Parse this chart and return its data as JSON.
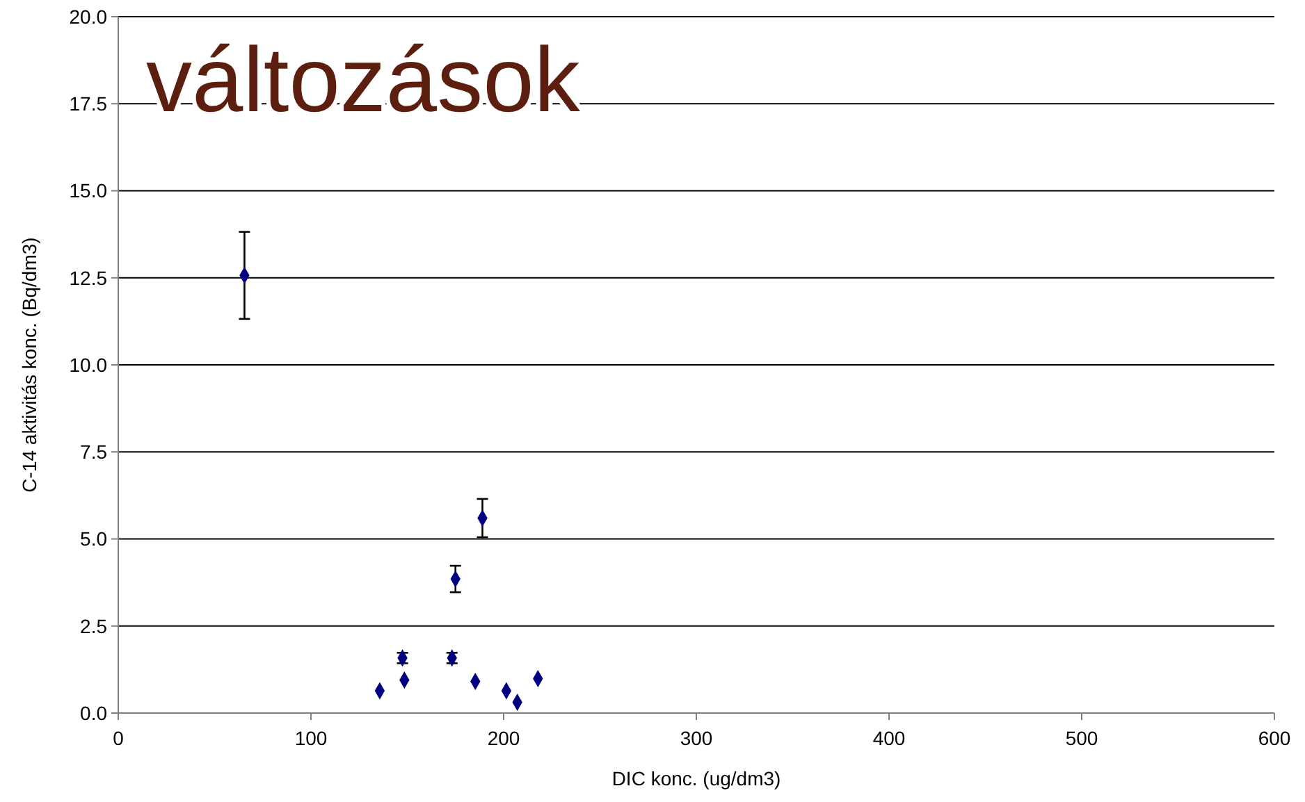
{
  "chart_data": {
    "type": "scatter",
    "title": "változások",
    "xlabel": "DIC konc. (ug/dm3)",
    "ylabel": "C-14 aktivitás konc.  (Bq/dm3)",
    "x": [
      65.5,
      175,
      189,
      135.7,
      147.5,
      148.5,
      173.2,
      185.3,
      201.4,
      207.1,
      217.8
    ],
    "values": [
      12.57,
      3.85,
      5.6,
      0.64,
      1.58,
      0.95,
      1.58,
      0.91,
      0.64,
      0.31,
      0.99
    ],
    "errors": [
      1.25,
      0.38,
      0.55,
      null,
      0.15,
      null,
      0.15,
      null,
      null,
      null,
      null
    ],
    "color": "#000080",
    "marker": "diamond",
    "grid": "y",
    "xlim": [
      0,
      600
    ],
    "xticks": [
      0,
      100,
      200,
      300,
      400,
      500,
      600
    ],
    "ylim": [
      0,
      20
    ],
    "yticks": [
      {
        "value": 0,
        "label": "0.0"
      },
      {
        "value": 2.5,
        "label": "2.5"
      },
      {
        "value": 5,
        "label": "5.0"
      },
      {
        "value": 7.5,
        "label": "7.5"
      },
      {
        "value": 10,
        "label": "10.0"
      },
      {
        "value": 12.5,
        "label": "12.5"
      },
      {
        "value": 15,
        "label": "15.0"
      },
      {
        "value": 17.5,
        "label": "17.5"
      },
      {
        "value": 20,
        "label": "20.0"
      }
    ]
  }
}
